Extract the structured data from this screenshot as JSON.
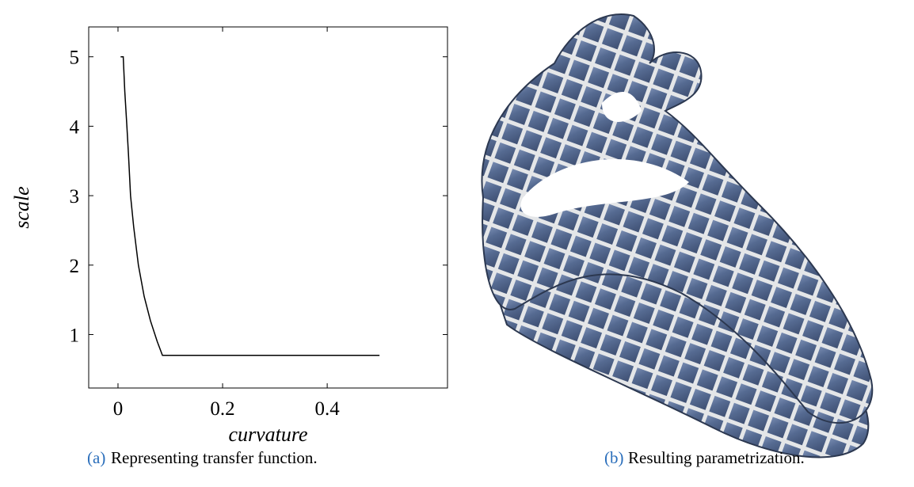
{
  "chart_data": {
    "type": "line",
    "x_label": "curvature",
    "y_label": "scale",
    "x": [
      0.005,
      0.01,
      0.013,
      0.017,
      0.02,
      0.024,
      0.03,
      0.039,
      0.05,
      0.062,
      0.075,
      0.085,
      0.5
    ],
    "values": [
      5,
      5,
      4.5,
      4.0,
      3.6,
      3.0,
      2.55,
      2.0,
      1.55,
      1.2,
      0.9,
      0.7,
      0.7
    ],
    "color": "#000000",
    "xlim": [
      -0.056,
      0.63
    ],
    "ylim": [
      0.23,
      5.43
    ],
    "xticks": [
      0,
      0.2,
      0.4
    ],
    "yticks": [
      1,
      2,
      3,
      4,
      5
    ]
  },
  "captions": [
    {
      "label": "(a)",
      "text": "Representing transfer function."
    },
    {
      "label": "(b)",
      "text": "Resulting parametrization."
    }
  ]
}
